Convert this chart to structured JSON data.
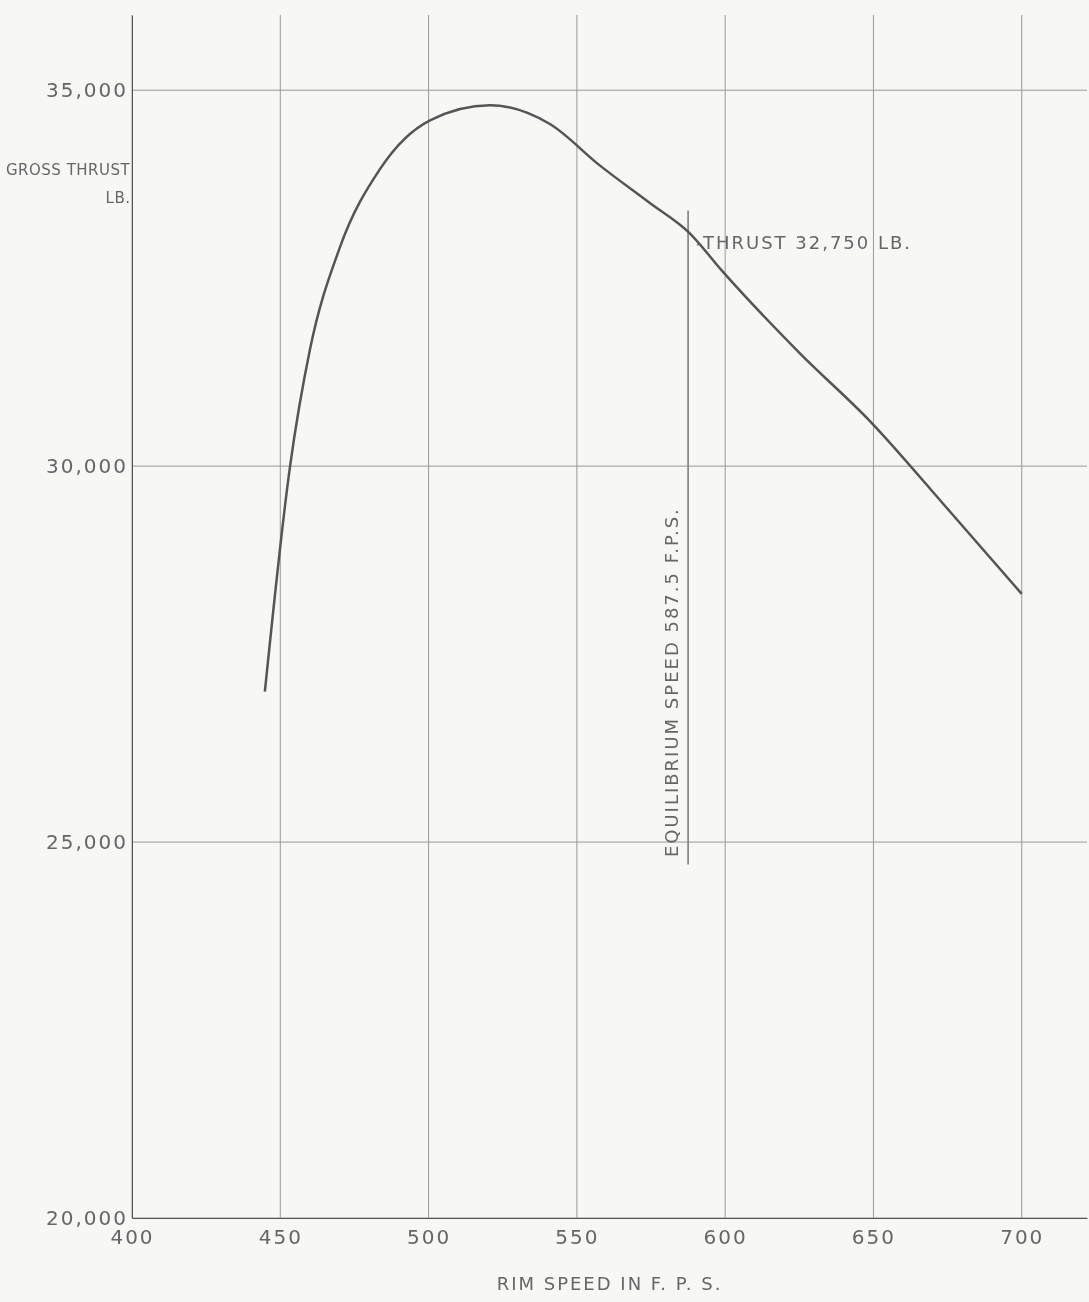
{
  "chart_data": {
    "type": "line",
    "xlabel": "RIM SPEED IN F. P. S.",
    "ylabel": "GROSS THRUST LB.",
    "x": [
      444.8,
      453.3,
      460,
      470,
      483.6,
      500.5,
      520.7,
      540.9,
      557.7,
      574.6,
      588,
      598.9,
      625.2,
      648.8,
      675.7,
      700
    ],
    "series": [
      {
        "color": "#555555",
        "values": [
          27000,
          30000,
          31550,
          32900,
          33950,
          34600,
          34800,
          34550,
          34000,
          33500,
          33100,
          32600,
          31500,
          30600,
          29400,
          28300
        ]
      }
    ],
    "xlim": [
      400,
      722
    ],
    "xticks": [
      400,
      450,
      500,
      550,
      600,
      650,
      700
    ],
    "ylim": [
      20000,
      36000
    ],
    "yticks": [
      {
        "value": 20000,
        "label": "20,000"
      },
      {
        "value": 25000,
        "label": "25,000"
      },
      {
        "value": 30000,
        "label": "30,000"
      },
      {
        "value": 35000,
        "label": "35,000"
      }
    ],
    "grid": true,
    "marker": "none",
    "line_style": "solid",
    "ref_lines": [
      {
        "axis": "x",
        "value": 587.5,
        "label": "EQUILIBRIUM SPEED 587.5 F.P.S."
      }
    ],
    "annotations": [
      {
        "text": "-THRUST 32,750 LB.",
        "x": 587.5,
        "y": 32750
      }
    ]
  }
}
